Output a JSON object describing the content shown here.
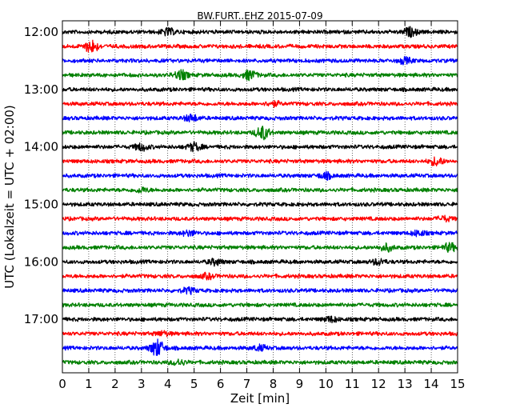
{
  "chart_data": {
    "type": "line",
    "title": "BW.FURT..EHZ 2015-07-09",
    "xlabel": "Zeit  [min]",
    "ylabel": "UTC (Lokalzeit = UTC + 02:00)",
    "xlim": [
      0,
      15
    ],
    "x_ticks": [
      "0",
      "1",
      "2",
      "3",
      "4",
      "5",
      "6",
      "7",
      "8",
      "9",
      "10",
      "11",
      "12",
      "13",
      "14",
      "15"
    ],
    "y_ticks": [
      "12:00",
      "13:00",
      "14:00",
      "15:00",
      "16:00",
      "17:00"
    ],
    "grid": "vertical-dotted",
    "trace_interval_min": 15,
    "colors": [
      "#000000",
      "#ff0000",
      "#0000ff",
      "#008000"
    ],
    "traces": [
      {
        "start": "12:00",
        "color": "#000000",
        "amplitude": 1.0,
        "events": [
          {
            "t": 4.0,
            "amp": 1.2
          },
          {
            "t": 13.2,
            "amp": 1.4
          }
        ]
      },
      {
        "start": "12:15",
        "color": "#ff0000",
        "amplitude": 1.0,
        "events": [
          {
            "t": 1.1,
            "amp": 2.2
          }
        ]
      },
      {
        "start": "12:30",
        "color": "#0000ff",
        "amplitude": 1.0,
        "events": [
          {
            "t": 13.0,
            "amp": 1.0
          }
        ]
      },
      {
        "start": "12:45",
        "color": "#008000",
        "amplitude": 1.0,
        "events": [
          {
            "t": 4.5,
            "amp": 1.6
          },
          {
            "t": 7.1,
            "amp": 1.6
          }
        ]
      },
      {
        "start": "13:00",
        "color": "#000000",
        "amplitude": 1.0,
        "events": []
      },
      {
        "start": "13:15",
        "color": "#ff0000",
        "amplitude": 1.0,
        "events": [
          {
            "t": 8.0,
            "amp": 0.8
          }
        ]
      },
      {
        "start": "13:30",
        "color": "#0000ff",
        "amplitude": 1.0,
        "events": [
          {
            "t": 4.9,
            "amp": 1.2
          }
        ]
      },
      {
        "start": "13:45",
        "color": "#008000",
        "amplitude": 1.0,
        "events": [
          {
            "t": 7.6,
            "amp": 2.4
          }
        ]
      },
      {
        "start": "14:00",
        "color": "#000000",
        "amplitude": 1.0,
        "events": [
          {
            "t": 3.0,
            "amp": 1.2
          },
          {
            "t": 5.0,
            "amp": 1.4
          }
        ]
      },
      {
        "start": "14:15",
        "color": "#ff0000",
        "amplitude": 1.0,
        "events": [
          {
            "t": 14.2,
            "amp": 1.4
          }
        ]
      },
      {
        "start": "14:30",
        "color": "#0000ff",
        "amplitude": 1.0,
        "events": [
          {
            "t": 10.0,
            "amp": 1.0
          }
        ]
      },
      {
        "start": "14:45",
        "color": "#008000",
        "amplitude": 1.0,
        "events": [
          {
            "t": 3.0,
            "amp": 0.8
          }
        ]
      },
      {
        "start": "15:00",
        "color": "#000000",
        "amplitude": 1.0,
        "events": []
      },
      {
        "start": "15:15",
        "color": "#ff0000",
        "amplitude": 1.0,
        "events": [
          {
            "t": 14.5,
            "amp": 0.8
          }
        ]
      },
      {
        "start": "15:30",
        "color": "#0000ff",
        "amplitude": 1.0,
        "events": [
          {
            "t": 4.8,
            "amp": 0.9
          },
          {
            "t": 13.5,
            "amp": 0.9
          }
        ]
      },
      {
        "start": "15:45",
        "color": "#008000",
        "amplitude": 1.0,
        "events": [
          {
            "t": 12.3,
            "amp": 1.2
          },
          {
            "t": 14.7,
            "amp": 1.4
          }
        ]
      },
      {
        "start": "16:00",
        "color": "#000000",
        "amplitude": 1.0,
        "events": [
          {
            "t": 5.8,
            "amp": 1.0
          },
          {
            "t": 12.0,
            "amp": 1.0
          }
        ]
      },
      {
        "start": "16:15",
        "color": "#ff0000",
        "amplitude": 1.0,
        "events": [
          {
            "t": 5.5,
            "amp": 0.8
          }
        ]
      },
      {
        "start": "16:30",
        "color": "#0000ff",
        "amplitude": 1.0,
        "events": [
          {
            "t": 4.8,
            "amp": 0.9
          }
        ]
      },
      {
        "start": "16:45",
        "color": "#008000",
        "amplitude": 1.0,
        "events": []
      },
      {
        "start": "17:00",
        "color": "#000000",
        "amplitude": 1.0,
        "events": [
          {
            "t": 10.2,
            "amp": 0.9
          }
        ]
      },
      {
        "start": "17:15",
        "color": "#ff0000",
        "amplitude": 1.0,
        "events": [
          {
            "t": 3.8,
            "amp": 0.7
          }
        ]
      },
      {
        "start": "17:30",
        "color": "#0000ff",
        "amplitude": 1.0,
        "events": [
          {
            "t": 3.6,
            "amp": 3.0
          },
          {
            "t": 7.5,
            "amp": 0.9
          }
        ]
      },
      {
        "start": "17:45",
        "color": "#008000",
        "amplitude": 1.0,
        "events": [
          {
            "t": 4.4,
            "amp": 1.0
          }
        ]
      }
    ]
  }
}
